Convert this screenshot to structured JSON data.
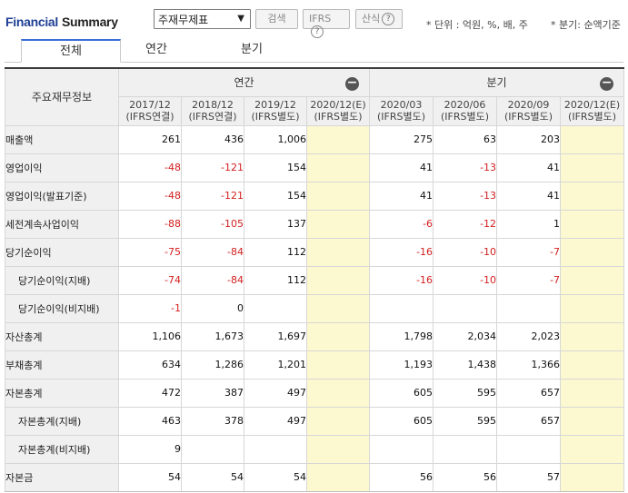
{
  "header": {
    "title_a": "Financial",
    "title_b": "Summary",
    "select_value": "주재무제표",
    "search_label": "검색",
    "ifrs_label": "IFRS",
    "calc_label": "산식",
    "note_unit": "* 단위 : 억원, %, 배, 주",
    "note_quarter": "* 분기: 순액기준"
  },
  "tabs": [
    "전체",
    "연간",
    "분기"
  ],
  "table": {
    "corner": "주요재무정보",
    "group_annual": "연간",
    "group_quarter": "분기",
    "periods": [
      {
        "p": "2017/12",
        "s": "(IFRS연결)"
      },
      {
        "p": "2018/12",
        "s": "(IFRS연결)"
      },
      {
        "p": "2019/12",
        "s": "(IFRS별도)"
      },
      {
        "p": "2020/12(E)",
        "s": "(IFRS별도)"
      },
      {
        "p": "2020/03",
        "s": "(IFRS별도)"
      },
      {
        "p": "2020/06",
        "s": "(IFRS별도)"
      },
      {
        "p": "2020/09",
        "s": "(IFRS별도)"
      },
      {
        "p": "2020/12(E)",
        "s": "(IFRS별도)"
      }
    ],
    "rows": [
      {
        "label": "매출액",
        "sub": false,
        "v": [
          "261",
          "436",
          "1,006",
          "",
          "275",
          "63",
          "203",
          ""
        ]
      },
      {
        "label": "영업이익",
        "sub": false,
        "v": [
          "-48",
          "-121",
          "154",
          "",
          "41",
          "-13",
          "41",
          ""
        ]
      },
      {
        "label": "영업이익(발표기준)",
        "sub": false,
        "v": [
          "-48",
          "-121",
          "154",
          "",
          "41",
          "-13",
          "41",
          ""
        ]
      },
      {
        "label": "세전계속사업이익",
        "sub": false,
        "v": [
          "-88",
          "-105",
          "137",
          "",
          "-6",
          "-12",
          "1",
          ""
        ]
      },
      {
        "label": "당기순이익",
        "sub": false,
        "v": [
          "-75",
          "-84",
          "112",
          "",
          "-16",
          "-10",
          "-7",
          ""
        ]
      },
      {
        "label": "당기순이익(지배)",
        "sub": true,
        "v": [
          "-74",
          "-84",
          "112",
          "",
          "-16",
          "-10",
          "-7",
          ""
        ]
      },
      {
        "label": "당기순이익(비지배)",
        "sub": true,
        "v": [
          "-1",
          "0",
          "",
          "",
          "",
          "",
          "",
          ""
        ]
      },
      {
        "label": "자산총계",
        "sub": false,
        "v": [
          "1,106",
          "1,673",
          "1,697",
          "",
          "1,798",
          "2,034",
          "2,023",
          ""
        ]
      },
      {
        "label": "부채총계",
        "sub": false,
        "v": [
          "634",
          "1,286",
          "1,201",
          "",
          "1,193",
          "1,438",
          "1,366",
          ""
        ]
      },
      {
        "label": "자본총계",
        "sub": false,
        "v": [
          "472",
          "387",
          "497",
          "",
          "605",
          "595",
          "657",
          ""
        ]
      },
      {
        "label": "자본총계(지배)",
        "sub": true,
        "v": [
          "463",
          "378",
          "497",
          "",
          "605",
          "595",
          "657",
          ""
        ]
      },
      {
        "label": "자본총계(비지배)",
        "sub": true,
        "v": [
          "9",
          "",
          "",
          "",
          "",
          "",
          "",
          ""
        ]
      },
      {
        "label": "자본금",
        "sub": false,
        "v": [
          "54",
          "54",
          "54",
          "",
          "56",
          "56",
          "57",
          ""
        ]
      }
    ]
  }
}
